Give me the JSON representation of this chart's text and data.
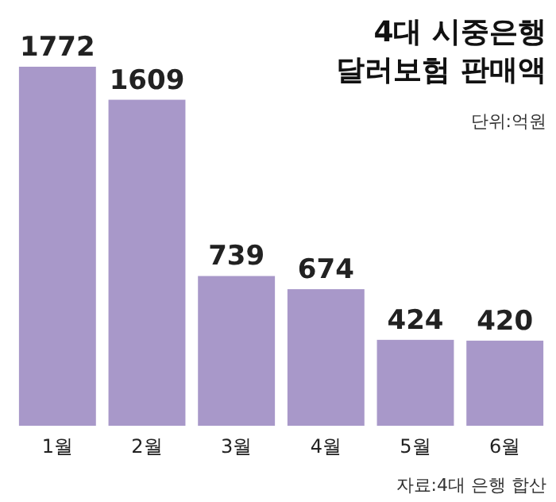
{
  "chart_data": {
    "type": "bar",
    "title": "4대 시중은행 달러보험 판매액",
    "categories": [
      "1월",
      "2월",
      "3월",
      "4월",
      "5월",
      "6월"
    ],
    "values": [
      1772,
      1609,
      739,
      674,
      424,
      420
    ],
    "color": "#a898c9",
    "data_labels": true,
    "annotations": [
      "단위:억원",
      "자료:4대 은행 합산"
    ]
  }
}
